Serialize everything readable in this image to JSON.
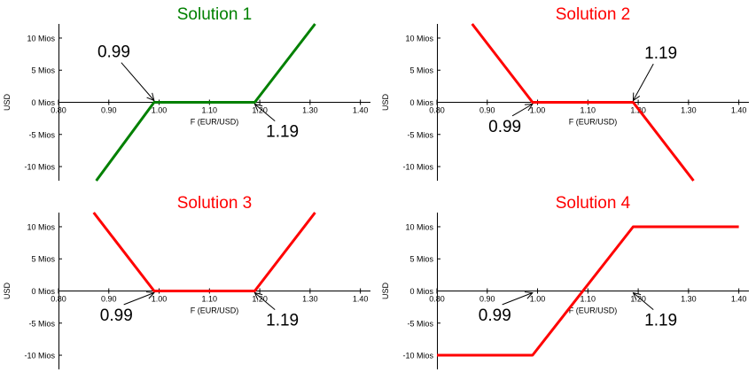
{
  "chart_data": [
    {
      "type": "line",
      "title": "Solution 1",
      "title_color": "#008000",
      "line_color": "#008000",
      "xlabel": "F (EUR/USD)",
      "ylabel": "USD",
      "xlim": [
        0.8,
        1.42
      ],
      "ylim": [
        -12.2,
        12.2
      ],
      "x_ticks": [
        0.8,
        0.9,
        1.0,
        1.1,
        1.2,
        1.3,
        1.4
      ],
      "x_tick_labels": [
        "0.80",
        "0.90",
        "1.00",
        "1.10",
        "1.20",
        "1.30",
        "1.40"
      ],
      "y_ticks": [
        10,
        5,
        0,
        -5,
        -10
      ],
      "y_tick_labels": [
        "10 Mios",
        "5 Mios",
        "0 Mios",
        "-5 Mios",
        "-10 Mios"
      ],
      "points": [
        [
          0.875,
          -12.2
        ],
        [
          0.99,
          0
        ],
        [
          1.19,
          0
        ],
        [
          1.31,
          12.2
        ]
      ],
      "annotations": [
        {
          "text": "0.99",
          "point": [
            0.99,
            0
          ],
          "text_at": [
            0.91,
            7
          ],
          "text_anchor": "middle"
        },
        {
          "text": "1.19",
          "point": [
            1.19,
            0
          ],
          "text_at": [
            1.245,
            -5.4
          ],
          "text_anchor": "middle"
        }
      ],
      "grid": false
    },
    {
      "type": "line",
      "title": "Solution 2",
      "title_color": "#ff0000",
      "line_color": "#ff0000",
      "xlabel": "F (EUR/USD)",
      "ylabel": "USD",
      "xlim": [
        0.8,
        1.42
      ],
      "ylim": [
        -12.2,
        12.2
      ],
      "x_ticks": [
        0.8,
        0.9,
        1.0,
        1.1,
        1.2,
        1.3,
        1.4
      ],
      "x_tick_labels": [
        "0.80",
        "0.90",
        "1.00",
        "1.10",
        "1.20",
        "1.30",
        "1.40"
      ],
      "y_ticks": [
        10,
        5,
        0,
        -5,
        -10
      ],
      "y_tick_labels": [
        "10 Mios",
        "5 Mios",
        "0 Mios",
        "-5 Mios",
        "-10 Mios"
      ],
      "points": [
        [
          0.87,
          12.2
        ],
        [
          0.99,
          0
        ],
        [
          1.19,
          0
        ],
        [
          1.31,
          -12.2
        ]
      ],
      "annotations": [
        {
          "text": "0.99",
          "point": [
            0.99,
            0
          ],
          "text_at": [
            0.935,
            -4.6
          ],
          "text_anchor": "middle"
        },
        {
          "text": "1.19",
          "point": [
            1.19,
            0
          ],
          "text_at": [
            1.245,
            6.8
          ],
          "text_anchor": "middle"
        }
      ],
      "grid": false
    },
    {
      "type": "line",
      "title": "Solution 3",
      "title_color": "#ff0000",
      "line_color": "#ff0000",
      "xlabel": "F (EUR/USD)",
      "ylabel": "USD",
      "xlim": [
        0.8,
        1.42
      ],
      "ylim": [
        -12.2,
        12.2
      ],
      "x_ticks": [
        0.8,
        0.9,
        1.0,
        1.1,
        1.2,
        1.3,
        1.4
      ],
      "x_tick_labels": [
        "0.80",
        "0.90",
        "1.00",
        "1.10",
        "1.20",
        "1.30",
        "1.40"
      ],
      "y_ticks": [
        10,
        5,
        0,
        -5,
        -10
      ],
      "y_tick_labels": [
        "10 Mios",
        "5 Mios",
        "0 Mios",
        "-5 Mios",
        "-10 Mios"
      ],
      "points": [
        [
          0.87,
          12.2
        ],
        [
          0.99,
          0
        ],
        [
          1.19,
          0
        ],
        [
          1.31,
          12.2
        ]
      ],
      "annotations": [
        {
          "text": "0.99",
          "point": [
            0.99,
            0
          ],
          "text_at": [
            0.915,
            -4.6
          ],
          "text_anchor": "middle"
        },
        {
          "text": "1.19",
          "point": [
            1.19,
            0
          ],
          "text_at": [
            1.245,
            -5.4
          ],
          "text_anchor": "middle"
        }
      ],
      "grid": false
    },
    {
      "type": "line",
      "title": "Solution 4",
      "title_color": "#ff0000",
      "line_color": "#ff0000",
      "xlabel": "F (EUR/USD)",
      "ylabel": "USD",
      "xlim": [
        0.8,
        1.42
      ],
      "ylim": [
        -12.2,
        12.2
      ],
      "x_ticks": [
        0.8,
        0.9,
        1.0,
        1.1,
        1.2,
        1.3,
        1.4
      ],
      "x_tick_labels": [
        "0.80",
        "0.90",
        "1.00",
        "1.10",
        "1.20",
        "1.30",
        "1.40"
      ],
      "y_ticks": [
        10,
        5,
        0,
        -5,
        -10
      ],
      "y_tick_labels": [
        "10 Mios",
        "5 Mios",
        "0 Mios",
        "-5 Mios",
        "-10 Mios"
      ],
      "points": [
        [
          0.8,
          -10
        ],
        [
          0.99,
          -10
        ],
        [
          1.19,
          10
        ],
        [
          1.4,
          10
        ]
      ],
      "annotations": [
        {
          "text": "0.99",
          "point": [
            0.99,
            0
          ],
          "text_at": [
            0.915,
            -4.6
          ],
          "text_anchor": "middle"
        },
        {
          "text": "1.19",
          "point": [
            1.19,
            0
          ],
          "text_at": [
            1.245,
            -5.4
          ],
          "text_anchor": "middle"
        }
      ],
      "grid": false
    }
  ]
}
